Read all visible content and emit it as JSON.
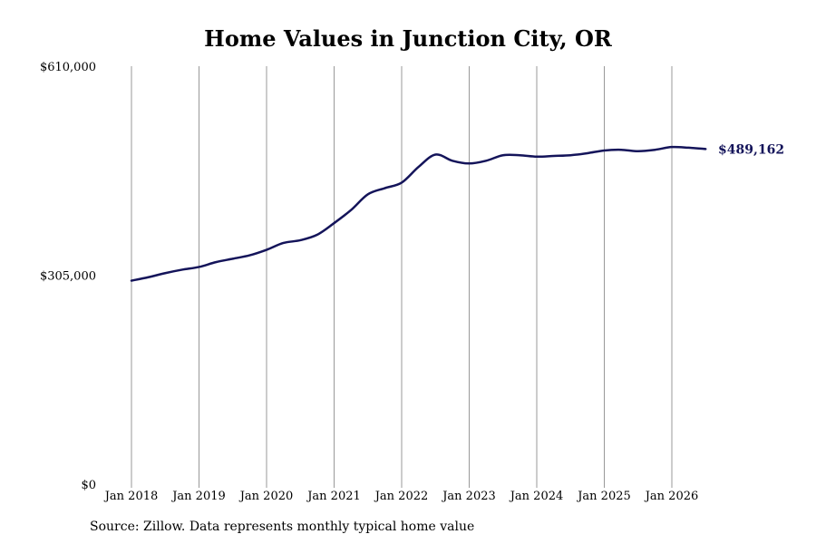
{
  "chart_data": {
    "type": "line",
    "title": "Home Values in Junction City, OR",
    "source": "Source: Zillow. Data represents monthly typical home value",
    "y_ticks": [
      "$610,000",
      "$305,000",
      "$0"
    ],
    "y_tick_values": [
      610000,
      305000,
      0
    ],
    "ylim": [
      0,
      610000
    ],
    "x_ticks": [
      "Jan 2018",
      "Jan 2019",
      "Jan 2020",
      "Jan 2021",
      "Jan 2022",
      "Jan 2023",
      "Jan 2024",
      "Jan 2025",
      "Jan 2026"
    ],
    "grid": "vertical",
    "line_color": "#14145a",
    "last_value_label": "$489,162",
    "series": [
      {
        "x": [
          "2018-01",
          "2018-04",
          "2018-07",
          "2018-10",
          "2019-01",
          "2019-04",
          "2019-07",
          "2019-10",
          "2020-01",
          "2020-04",
          "2020-07",
          "2020-10",
          "2021-01",
          "2021-04",
          "2021-07",
          "2021-10",
          "2022-01",
          "2022-04",
          "2022-07",
          "2022-10",
          "2023-01",
          "2023-04",
          "2023-07",
          "2023-10",
          "2024-01",
          "2024-04",
          "2024-07",
          "2024-10",
          "2025-01",
          "2025-04",
          "2025-07",
          "2025-10",
          "2026-01",
          "2026-04",
          "2026-07"
        ],
        "values": [
          297000,
          302000,
          308000,
          313000,
          317000,
          324000,
          329000,
          334000,
          342000,
          352000,
          356000,
          364000,
          381000,
          400000,
          423000,
          432000,
          440000,
          463000,
          481000,
          472000,
          468000,
          472000,
          480000,
          480000,
          478000,
          479000,
          480000,
          483000,
          487000,
          488000,
          486000,
          488000,
          492000,
          491000,
          489162
        ]
      }
    ]
  }
}
